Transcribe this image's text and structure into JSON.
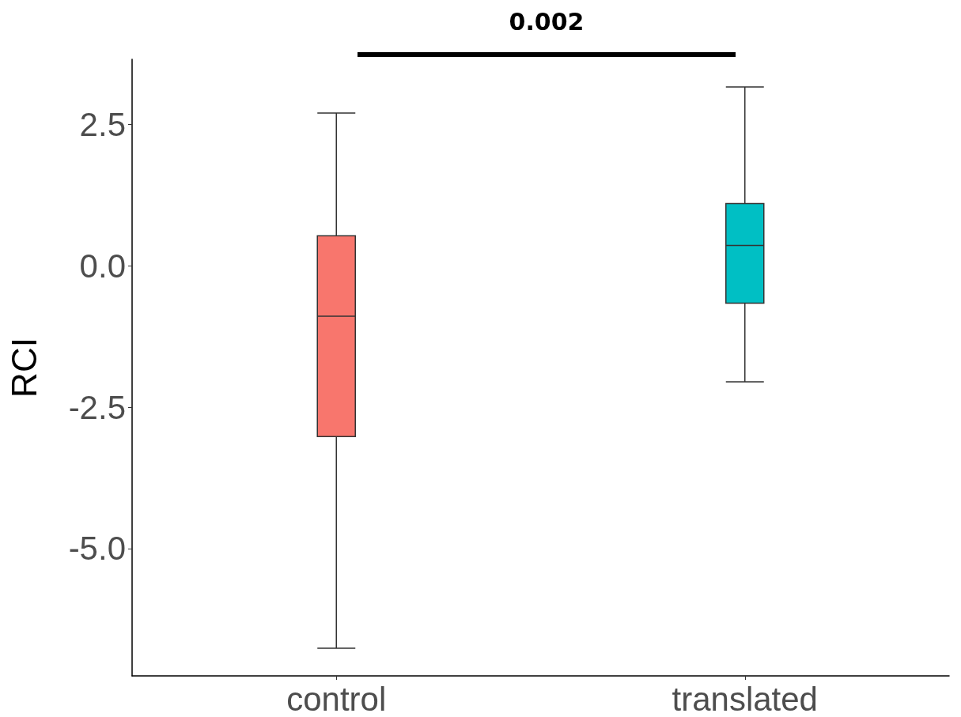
{
  "chart_data": {
    "type": "box",
    "ylabel": "RCI",
    "categories": [
      "control",
      "translated"
    ],
    "colors": [
      "#f8766d",
      "#00bfc4"
    ],
    "boxes": [
      {
        "low": -6.76,
        "q1": -3.02,
        "median": -0.89,
        "q3": 0.53,
        "high": 2.7
      },
      {
        "low": -2.05,
        "q1": -0.66,
        "median": 0.36,
        "q3": 1.1,
        "high": 3.16
      }
    ],
    "ylim": [
      -7.25,
      3.65
    ],
    "yticks": [
      {
        "value": -5,
        "label": "-5.0"
      },
      {
        "value": -2.5,
        "label": "-2.5"
      },
      {
        "value": 0,
        "label": "0.0"
      },
      {
        "value": 2.5,
        "label": "2.5"
      }
    ],
    "annotations": [
      "0.002"
    ],
    "grid": false
  }
}
